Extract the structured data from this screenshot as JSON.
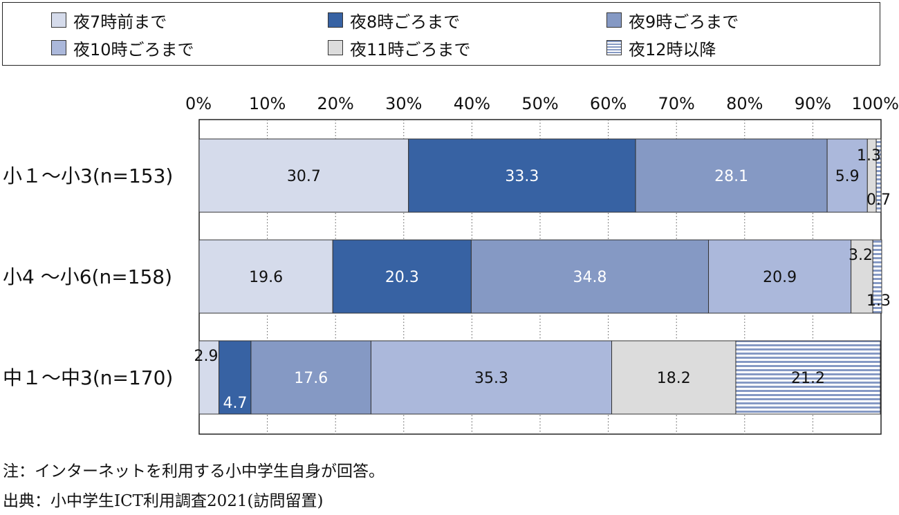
{
  "legend": {
    "items": [
      {
        "label": "夜7時前まで",
        "color": "#d5dbeb",
        "pattern": "none"
      },
      {
        "label": "夜8時ごろまで",
        "color": "#3762a3",
        "pattern": "none"
      },
      {
        "label": "夜9時ごろまで",
        "color": "#8599c4",
        "pattern": "none"
      },
      {
        "label": "夜10時ごろまで",
        "color": "#abb8db",
        "pattern": "none"
      },
      {
        "label": "夜11時ごろまで",
        "color": "#dcdcdc",
        "pattern": "none"
      },
      {
        "label": "夜12時以降",
        "color": "#8599c4",
        "pattern": "horizontal-stripes"
      }
    ]
  },
  "chart_data": {
    "type": "bar",
    "orientation": "horizontal-stacked-100",
    "xlim": [
      0,
      100
    ],
    "x_ticks": [
      "0%",
      "10%",
      "20%",
      "30%",
      "40%",
      "50%",
      "60%",
      "70%",
      "80%",
      "90%",
      "100%"
    ],
    "grid": "vertical-dotted",
    "categories": [
      "小１～小3(n=153)",
      "小4 ～小6(n=158)",
      "中１～中3(n=170)"
    ],
    "series": [
      {
        "name": "夜7時前まで",
        "values": [
          30.7,
          19.6,
          2.9
        ]
      },
      {
        "name": "夜8時ごろまで",
        "values": [
          33.3,
          20.3,
          4.7
        ]
      },
      {
        "name": "夜9時ごろまで",
        "values": [
          28.1,
          34.8,
          17.6
        ]
      },
      {
        "name": "夜10時ごろまで",
        "values": [
          5.9,
          20.9,
          35.3
        ]
      },
      {
        "name": "夜11時ごろまで",
        "values": [
          1.3,
          3.2,
          18.2
        ]
      },
      {
        "name": "夜12時以降",
        "values": [
          0.7,
          1.3,
          21.2
        ]
      }
    ],
    "value_labels": [
      [
        "30.7",
        "33.3",
        "28.1",
        "5.9",
        "1.3",
        "0.7"
      ],
      [
        "19.6",
        "20.3",
        "34.8",
        "20.9",
        "3.2",
        "1.3"
      ],
      [
        "2.9",
        "4.7",
        "17.6",
        "35.3",
        "18.2",
        "21.2"
      ]
    ]
  },
  "notes": {
    "note": "注：インターネットを利用する小中学生自身が回答。",
    "source": "出典：小中学生ICT利用調査2021(訪問留置)"
  }
}
